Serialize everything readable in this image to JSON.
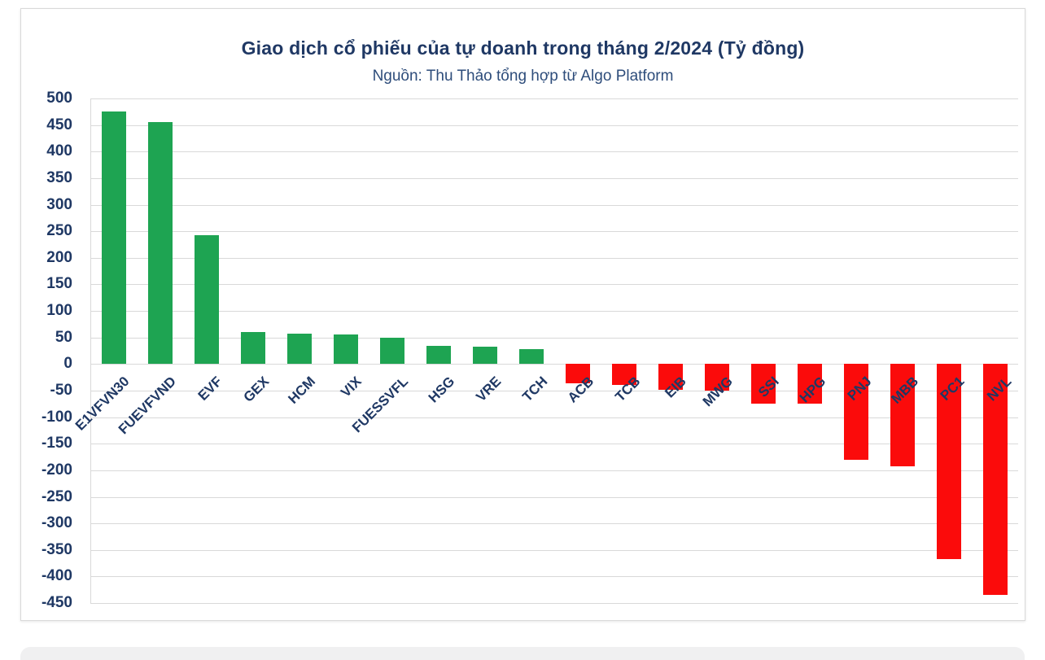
{
  "chart_data": {
    "type": "bar",
    "title": "Giao dịch cổ phiếu của tự doanh trong tháng 2/2024 (Tỷ đồng)",
    "subtitle": "Nguồn: Thu Thảo tổng hợp từ Algo Platform",
    "categories": [
      "E1VFVN30",
      "FUEVFVND",
      "EVF",
      "GEX",
      "HCM",
      "VIX",
      "FUESSVFL",
      "HSG",
      "VRE",
      "TCH",
      "ACB",
      "TCB",
      "EIB",
      "MWG",
      "SSI",
      "HPG",
      "PNJ",
      "MBB",
      "PC1",
      "NVL"
    ],
    "values": [
      475,
      455,
      242,
      60,
      58,
      55,
      49,
      35,
      33,
      28,
      -36,
      -40,
      -48,
      -50,
      -74,
      -75,
      -180,
      -192,
      -367,
      -435
    ],
    "unit": "Tỷ đồng",
    "xlabel": "",
    "ylabel": "",
    "ylim": [
      -450,
      500
    ],
    "ytick_step": 50,
    "grid": true,
    "legend": false,
    "colors": {
      "positive": "#1ea452",
      "negative": "#fb0b0b",
      "title_text": "#1f3864",
      "subtitle_text": "#2e4d7b",
      "tick_text": "#1f3864",
      "gridline": "#d9d9d9"
    }
  }
}
